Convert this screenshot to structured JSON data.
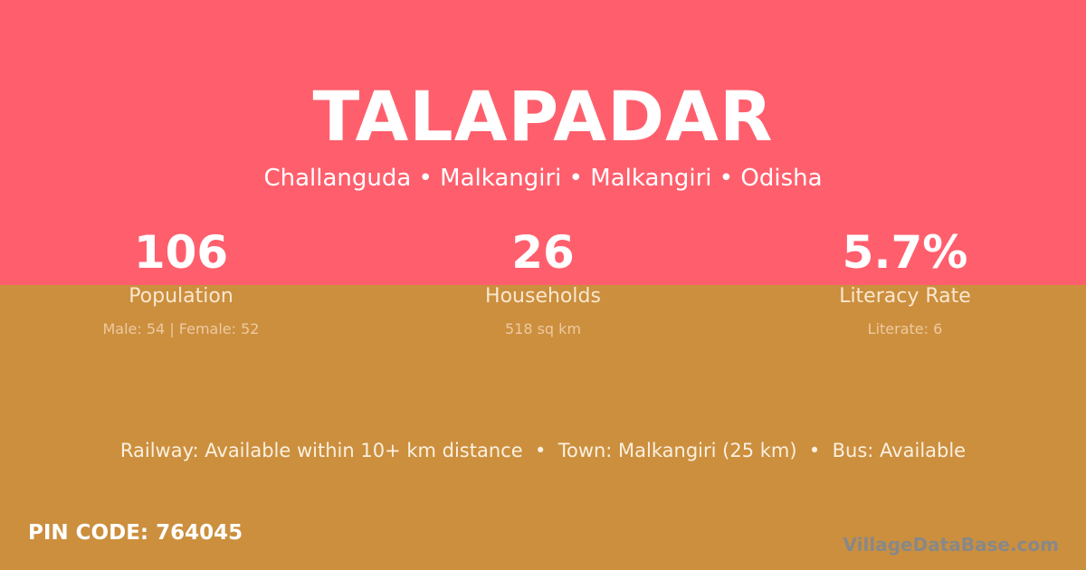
{
  "village": {
    "name": "TALAPADAR",
    "location": "Challanguda • Malkangiri • Malkangiri • Odisha"
  },
  "stats": [
    {
      "value": "106",
      "label": "Population",
      "detail": "Male: 54 | Female: 52"
    },
    {
      "value": "26",
      "label": "Households",
      "detail": "518 sq km"
    },
    {
      "value": "5.7%",
      "label": "Literacy Rate",
      "detail": "Literate: 6"
    }
  ],
  "amenities": "Railway: Available within 10+ km distance  •  Town: Malkangiri (25 km)  •  Bus: Available",
  "pin": "PIN CODE: 764045",
  "watermark": "VillageDataBase.com",
  "colors": {
    "top": "#ff5f6d",
    "bottom": "#cb8f3e"
  }
}
